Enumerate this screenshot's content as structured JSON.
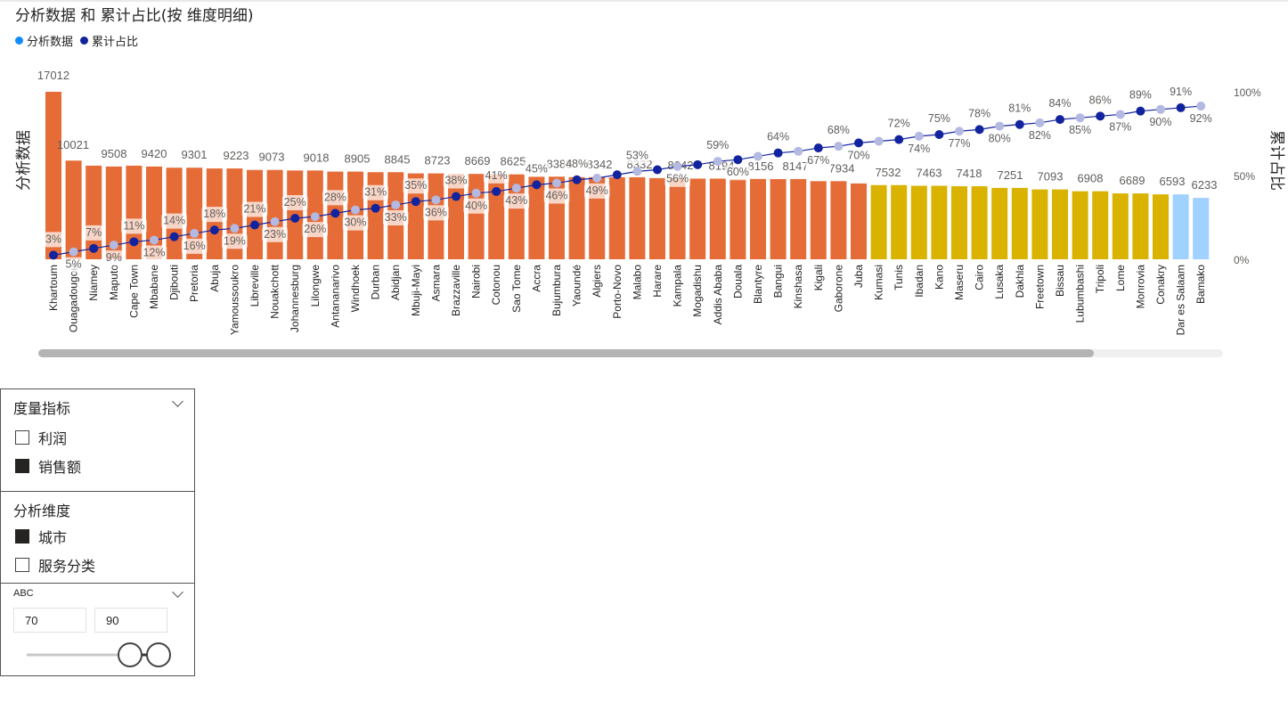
{
  "chart_title": "分析数据 和 累计占比(按 维度明细)",
  "legend": [
    {
      "label": "分析数据",
      "color": "#118dff"
    },
    {
      "label": "累计占比",
      "color": "#12239e"
    }
  ],
  "colors": {
    "orange": "#e66c37",
    "gold": "#d9b300",
    "lightblue": "#a0d1ff",
    "line": "#12239e",
    "line_faded": "#b3b9e0"
  },
  "chart_data": {
    "type": "bar",
    "title": "分析数据 和 累计占比(按 维度明细)",
    "ylabel": "分析数据",
    "y2label": "累计占比",
    "y2_ticks": [
      "100%",
      "50%",
      "0%"
    ],
    "categories": [
      "Khartoum",
      "Ouagadougou",
      "Niamey",
      "Maputo",
      "Cape Town",
      "Mbabane",
      "Djibouti",
      "Pretoria",
      "Abuja",
      "Yamoussoukro",
      "Libreville",
      "Nouakchott",
      "Johannesburg",
      "Lilongwe",
      "Antananarivo",
      "Windhoek",
      "Durban",
      "Abidjan",
      "Mbuji-Mayi",
      "Asmara",
      "Brazzaville",
      "Nairobi",
      "Cotonou",
      "Sao Tome",
      "Accra",
      "Bujumbura",
      "Yaoundé",
      "Algiers",
      "Porto-Novo",
      "Malabo",
      "Harare",
      "Kampala",
      "Mogadishu",
      "Addis Ababa",
      "Douala",
      "Blantyre",
      "Bangui",
      "Kinshasa",
      "Kigali",
      "Gaborone",
      "Juba",
      "Kumasi",
      "Tunis",
      "Ibadan",
      "Kano",
      "Maseru",
      "Cairo",
      "Lusaka",
      "Dakhla",
      "Freetown",
      "Bissau",
      "Lubumbashi",
      "Tripoli",
      "Lome",
      "Monrovia",
      "Conakry",
      "Dar es Salaam",
      "Bamako"
    ],
    "series": [
      {
        "name": "分析数据",
        "type": "bar",
        "values": [
          17012,
          10021,
          9508,
          9420,
          9301,
          9223,
          9073,
          9018,
          8905,
          8845,
          8723,
          8669,
          8625,
          8388,
          8342,
          8332,
          8242,
          8194,
          8156,
          8147,
          7934,
          7532,
          7463,
          7418,
          7251,
          7093,
          6908,
          6689,
          6593,
          6233,
          null,
          null,
          null,
          null,
          null,
          null,
          null,
          null,
          null,
          null,
          null,
          null,
          null,
          null,
          null,
          null,
          null,
          null,
          null,
          null,
          null,
          null,
          null,
          null,
          null,
          null,
          null,
          null
        ],
        "category_colors": [
          "orange",
          "orange",
          "orange",
          "orange",
          "orange",
          "orange",
          "orange",
          "orange",
          "orange",
          "orange",
          "orange",
          "orange",
          "orange",
          "orange",
          "orange",
          "orange",
          "orange",
          "orange",
          "orange",
          "orange",
          "orange",
          "orange",
          "orange",
          "orange",
          "orange",
          "orange",
          "orange",
          "orange",
          "orange",
          "orange",
          "orange",
          "orange",
          "orange",
          "orange",
          "orange",
          "orange",
          "orange",
          "orange",
          "orange",
          "orange",
          "orange",
          "gold",
          "gold",
          "gold",
          "gold",
          "gold",
          "gold",
          "gold",
          "gold",
          "gold",
          "gold",
          "gold",
          "gold",
          "gold",
          "gold",
          "gold",
          "lightblue",
          "lightblue"
        ]
      },
      {
        "name": "累计占比",
        "type": "line",
        "values": [
          3,
          5,
          7,
          9,
          11,
          12,
          14,
          16,
          18,
          19,
          21,
          23,
          25,
          26,
          28,
          30,
          31,
          33,
          35,
          36,
          38,
          40,
          41,
          43,
          45,
          46,
          48,
          49,
          51,
          53,
          54,
          56,
          57,
          59,
          60,
          62,
          64,
          65,
          67,
          68,
          70,
          71,
          72,
          74,
          75,
          77,
          78,
          80,
          81,
          82,
          84,
          85,
          86,
          87,
          89,
          90,
          91,
          92
        ]
      },
      {
        "name": "累计占比_labels",
        "labels": [
          "3%",
          "5%",
          "7%",
          "9%",
          "11%",
          "12%",
          "14%",
          "16%",
          "18%",
          "19%",
          "21%",
          "23%",
          "25%",
          "26%",
          "28%",
          "30%",
          "31%",
          "33%",
          "35%",
          "36%",
          "38%",
          "40%",
          "41%",
          "43%",
          "45%",
          "46%",
          "48%",
          "49%",
          "53%",
          "56%",
          "59%",
          "60%",
          "64%",
          "67%",
          "68%",
          "70%",
          "72%",
          "74%",
          "75%",
          "77%",
          "78%",
          "80%",
          "81%",
          "82%",
          "84%",
          "85%",
          "86%",
          "87%",
          "89%",
          "90%",
          "91%",
          "92%"
        ]
      }
    ],
    "bar_value_labels": [
      "17012",
      "10021",
      "9508",
      "9420",
      "9301",
      "9223",
      "9073",
      "9018",
      "8905",
      "8845",
      "8723",
      "8669",
      "8625",
      "8388",
      "8342",
      "8332",
      "8242",
      "8194",
      "8156",
      "8147",
      "7934",
      "7532",
      "7463",
      "7418",
      "7251",
      "7093",
      "6908",
      "6689",
      "6593",
      "6233"
    ],
    "bar_values_by_category": [
      17012,
      10021,
      9508,
      9420,
      9508,
      9420,
      9301,
      9301,
      9223,
      9223,
      9073,
      9073,
      9018,
      9018,
      8905,
      8905,
      8845,
      8845,
      8723,
      8723,
      8669,
      8669,
      8625,
      8625,
      8388,
      8388,
      8342,
      8342,
      8332,
      8332,
      8242,
      8242,
      8194,
      8194,
      8156,
      8156,
      8147,
      8147,
      7934,
      7934,
      7700,
      7532,
      7532,
      7463,
      7463,
      7418,
      7418,
      7251,
      7251,
      7093,
      7093,
      6908,
      6908,
      6689,
      6689,
      6593,
      6593,
      6233
    ],
    "ylim": [
      0,
      17012
    ],
    "y2lim": [
      0,
      100
    ]
  },
  "slicer1": {
    "title": "度量指标",
    "options": [
      {
        "label": "利润",
        "checked": false
      },
      {
        "label": "销售额",
        "checked": true
      }
    ]
  },
  "slicer2": {
    "title": "分析维度",
    "options": [
      {
        "label": "城市",
        "checked": true
      },
      {
        "label": "服务分类",
        "checked": false
      }
    ]
  },
  "slicer3": {
    "title": "ABC",
    "min_value": "70",
    "max_value": "90",
    "range": [
      70,
      90
    ]
  }
}
